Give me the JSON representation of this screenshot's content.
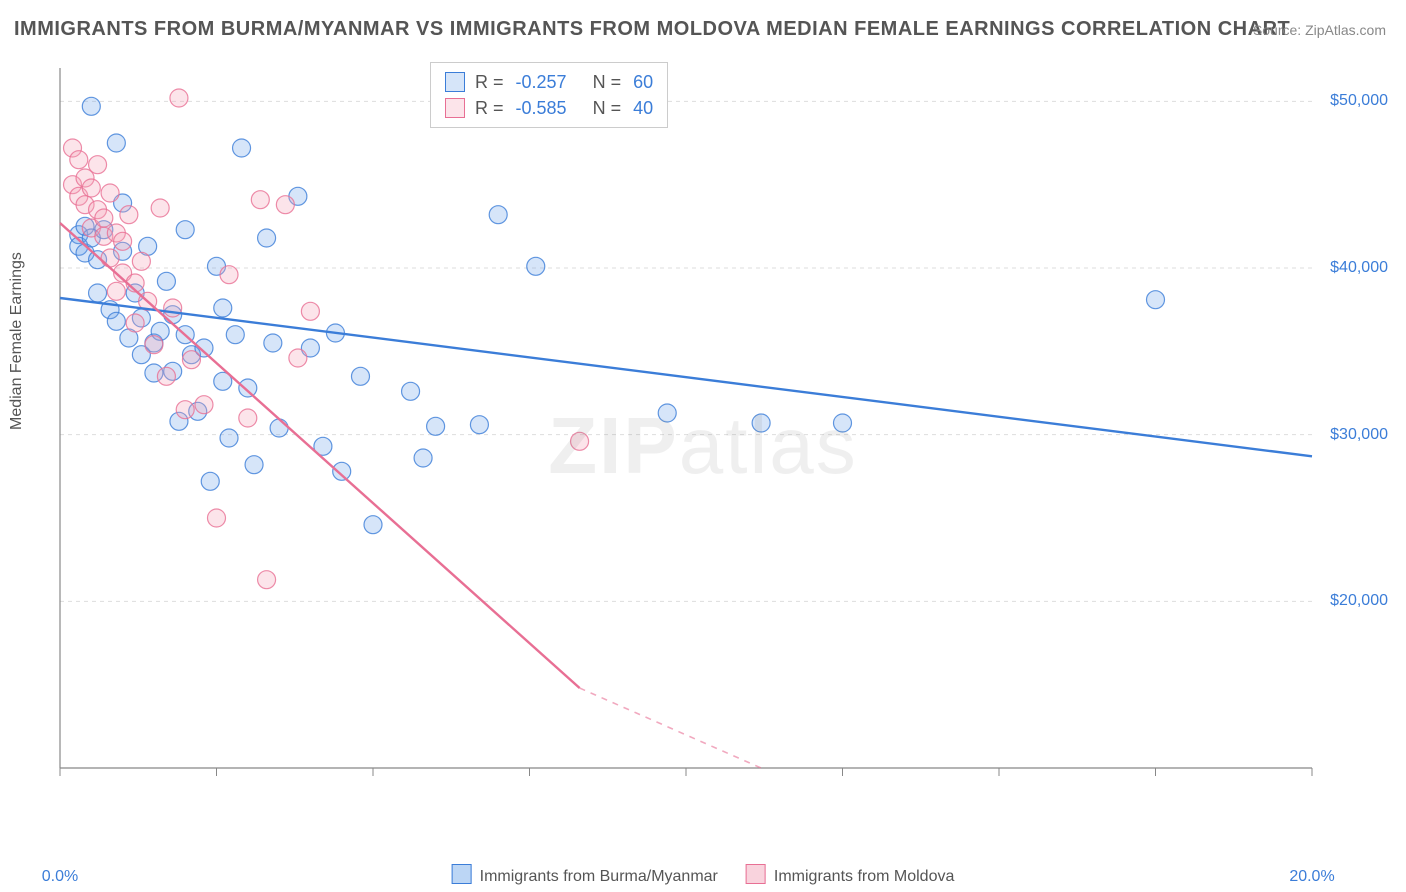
{
  "title": "IMMIGRANTS FROM BURMA/MYANMAR VS IMMIGRANTS FROM MOLDOVA MEDIAN FEMALE EARNINGS CORRELATION CHART",
  "source": "Source: ZipAtlas.com",
  "ylabel": "Median Female Earnings",
  "watermark_a": "ZIP",
  "watermark_b": "atlas",
  "chart": {
    "type": "scatter",
    "background_color": "#ffffff",
    "grid_color": "#dddddd",
    "axis_color": "#888888",
    "text_color": "#555555",
    "value_color": "#3b7dd8",
    "xlim": [
      0,
      20
    ],
    "ylim": [
      10000,
      52000
    ],
    "ytick_step": 10000,
    "ytick_labels": [
      "$20,000",
      "$30,000",
      "$40,000",
      "$50,000"
    ],
    "ytick_values": [
      20000,
      30000,
      40000,
      50000
    ],
    "xtick_values": [
      0,
      2.5,
      5,
      7.5,
      10,
      12.5,
      15,
      17.5,
      20
    ],
    "xtick_labels_shown": {
      "0": "0.0%",
      "20": "20.0%"
    },
    "marker_radius": 9,
    "marker_fill_opacity": 0.28,
    "marker_stroke_opacity": 0.8,
    "marker_stroke_width": 1.2,
    "trend_line_width": 2.4,
    "trend_dash_width": 1.6
  },
  "series": [
    {
      "name": "Immigrants from Burma/Myanmar",
      "color": "#6aa3e8",
      "stroke": "#3b7dd8",
      "fill_rgba": "rgba(106,163,232,0.28)",
      "R": "-0.257",
      "N": "60",
      "trend": {
        "x1": 0,
        "y1": 38200,
        "x2": 20,
        "y2": 28700
      },
      "points": [
        [
          0.3,
          42000
        ],
        [
          0.3,
          41300
        ],
        [
          0.4,
          42500
        ],
        [
          0.4,
          40900
        ],
        [
          0.5,
          49700
        ],
        [
          0.5,
          41800
        ],
        [
          0.6,
          40500
        ],
        [
          0.6,
          38500
        ],
        [
          0.7,
          42300
        ],
        [
          0.8,
          37500
        ],
        [
          0.9,
          47500
        ],
        [
          0.9,
          36800
        ],
        [
          1.0,
          43900
        ],
        [
          1.0,
          41000
        ],
        [
          1.1,
          35800
        ],
        [
          1.2,
          38500
        ],
        [
          1.3,
          37000
        ],
        [
          1.3,
          34800
        ],
        [
          1.4,
          41300
        ],
        [
          1.5,
          35500
        ],
        [
          1.5,
          33700
        ],
        [
          1.6,
          36200
        ],
        [
          1.7,
          39200
        ],
        [
          1.8,
          37200
        ],
        [
          1.8,
          33800
        ],
        [
          1.9,
          30800
        ],
        [
          2.0,
          42300
        ],
        [
          2.0,
          36000
        ],
        [
          2.1,
          34800
        ],
        [
          2.2,
          31400
        ],
        [
          2.3,
          35200
        ],
        [
          2.4,
          27200
        ],
        [
          2.5,
          40100
        ],
        [
          2.6,
          37600
        ],
        [
          2.6,
          33200
        ],
        [
          2.7,
          29800
        ],
        [
          2.8,
          36000
        ],
        [
          2.9,
          47200
        ],
        [
          3.0,
          32800
        ],
        [
          3.1,
          28200
        ],
        [
          3.3,
          41800
        ],
        [
          3.4,
          35500
        ],
        [
          3.5,
          30400
        ],
        [
          3.8,
          44300
        ],
        [
          4.0,
          35200
        ],
        [
          4.2,
          29300
        ],
        [
          4.4,
          36100
        ],
        [
          4.5,
          27800
        ],
        [
          4.8,
          33500
        ],
        [
          5.0,
          24600
        ],
        [
          5.6,
          32600
        ],
        [
          5.8,
          28600
        ],
        [
          6.0,
          30500
        ],
        [
          6.7,
          30600
        ],
        [
          7.0,
          43200
        ],
        [
          7.6,
          40100
        ],
        [
          9.7,
          31300
        ],
        [
          11.2,
          30700
        ],
        [
          12.5,
          30700
        ],
        [
          17.5,
          38100
        ]
      ]
    },
    {
      "name": "Immigrants from Moldova",
      "color": "#f4a7bb",
      "stroke": "#e86f94",
      "fill_rgba": "rgba(244,167,187,0.30)",
      "R": "-0.585",
      "N": "40",
      "trend": {
        "x1": 0,
        "y1": 42700,
        "x2": 8.3,
        "y2": 14800
      },
      "trend_dash": {
        "x1": 8.3,
        "y1": 14800,
        "x2": 11.2,
        "y2": 10000
      },
      "points": [
        [
          0.2,
          47200
        ],
        [
          0.2,
          45000
        ],
        [
          0.3,
          46500
        ],
        [
          0.3,
          44300
        ],
        [
          0.4,
          43800
        ],
        [
          0.4,
          45400
        ],
        [
          0.5,
          42400
        ],
        [
          0.5,
          44800
        ],
        [
          0.6,
          46200
        ],
        [
          0.6,
          43500
        ],
        [
          0.7,
          41900
        ],
        [
          0.7,
          43000
        ],
        [
          0.8,
          44500
        ],
        [
          0.8,
          40600
        ],
        [
          0.9,
          42100
        ],
        [
          0.9,
          38600
        ],
        [
          1.0,
          41600
        ],
        [
          1.0,
          39700
        ],
        [
          1.1,
          43200
        ],
        [
          1.2,
          39100
        ],
        [
          1.2,
          36700
        ],
        [
          1.3,
          40400
        ],
        [
          1.4,
          38000
        ],
        [
          1.5,
          35400
        ],
        [
          1.6,
          43600
        ],
        [
          1.7,
          33500
        ],
        [
          1.8,
          37600
        ],
        [
          1.9,
          50200
        ],
        [
          2.0,
          31500
        ],
        [
          2.1,
          34500
        ],
        [
          2.3,
          31800
        ],
        [
          2.5,
          25000
        ],
        [
          2.7,
          39600
        ],
        [
          3.0,
          31000
        ],
        [
          3.2,
          44100
        ],
        [
          3.3,
          21300
        ],
        [
          3.6,
          43800
        ],
        [
          3.8,
          34600
        ],
        [
          4.0,
          37400
        ],
        [
          8.3,
          29600
        ]
      ]
    }
  ],
  "legend_bottom": [
    {
      "label": "Immigrants from Burma/Myanmar",
      "fill": "rgba(106,163,232,0.45)",
      "stroke": "#3b7dd8"
    },
    {
      "label": "Immigrants from Moldova",
      "fill": "rgba(244,167,187,0.5)",
      "stroke": "#e86f94"
    }
  ]
}
